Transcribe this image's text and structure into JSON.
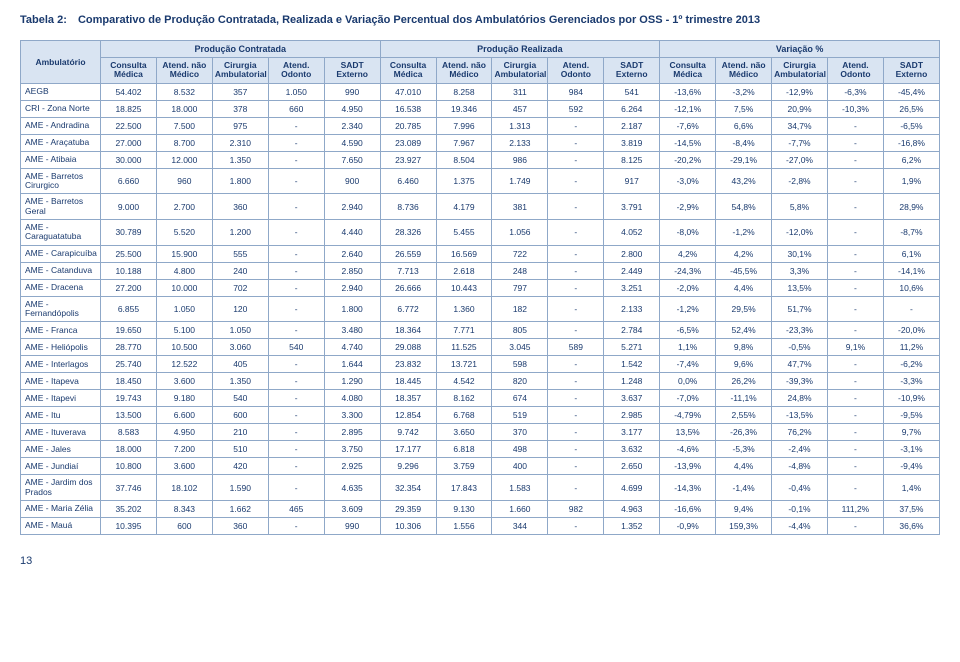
{
  "title_label": "Tabela 2:",
  "title_text": "Comparativo de Produção Contratada, Realizada e Variação Percentual dos Ambulatórios Gerenciados por OSS - 1º trimestre 2013",
  "page_number": "13",
  "headers": {
    "ambulatorio": "Ambulatório",
    "group1": "Produção Contratada",
    "group2": "Produção Realizada",
    "group3": "Variação %",
    "sub": [
      "Consulta Médica",
      "Atend. não Médico",
      "Cirurgia Ambulatorial",
      "Atend. Odonto",
      "SADT Externo",
      "Consulta Médica",
      "Atend. não Médico",
      "Cirurgia Ambulatorial",
      "Atend. Odonto",
      "SADT Externo",
      "Consulta Médica",
      "Atend. não Médico",
      "Cirurgia Ambulatorial",
      "Atend. Odonto",
      "SADT Externo"
    ]
  },
  "rows": [
    {
      "label": "AEGB",
      "cells": [
        "54.402",
        "8.532",
        "357",
        "1.050",
        "990",
        "47.010",
        "8.258",
        "311",
        "984",
        "541",
        "-13,6%",
        "-3,2%",
        "-12,9%",
        "-6,3%",
        "-45,4%"
      ]
    },
    {
      "label": "CRI - Zona Norte",
      "cells": [
        "18.825",
        "18.000",
        "378",
        "660",
        "4.950",
        "16.538",
        "19.346",
        "457",
        "592",
        "6.264",
        "-12,1%",
        "7,5%",
        "20,9%",
        "-10,3%",
        "26,5%"
      ]
    },
    {
      "label": "AME - Andradina",
      "cells": [
        "22.500",
        "7.500",
        "975",
        "-",
        "2.340",
        "20.785",
        "7.996",
        "1.313",
        "-",
        "2.187",
        "-7,6%",
        "6,6%",
        "34,7%",
        "-",
        "-6,5%"
      ]
    },
    {
      "label": "AME - Araçatuba",
      "cells": [
        "27.000",
        "8.700",
        "2.310",
        "-",
        "4.590",
        "23.089",
        "7.967",
        "2.133",
        "-",
        "3.819",
        "-14,5%",
        "-8,4%",
        "-7,7%",
        "-",
        "-16,8%"
      ]
    },
    {
      "label": "AME - Atibaia",
      "cells": [
        "30.000",
        "12.000",
        "1.350",
        "-",
        "7.650",
        "23.927",
        "8.504",
        "986",
        "-",
        "8.125",
        "-20,2%",
        "-29,1%",
        "-27,0%",
        "-",
        "6,2%"
      ]
    },
    {
      "label": "AME - Barretos Cirurgico",
      "cells": [
        "6.660",
        "960",
        "1.800",
        "-",
        "900",
        "6.460",
        "1.375",
        "1.749",
        "-",
        "917",
        "-3,0%",
        "43,2%",
        "-2,8%",
        "-",
        "1,9%"
      ]
    },
    {
      "label": "AME - Barretos Geral",
      "cells": [
        "9.000",
        "2.700",
        "360",
        "-",
        "2.940",
        "8.736",
        "4.179",
        "381",
        "-",
        "3.791",
        "-2,9%",
        "54,8%",
        "5,8%",
        "-",
        "28,9%"
      ]
    },
    {
      "label": "AME - Caraguatatuba",
      "cells": [
        "30.789",
        "5.520",
        "1.200",
        "-",
        "4.440",
        "28.326",
        "5.455",
        "1.056",
        "-",
        "4.052",
        "-8,0%",
        "-1,2%",
        "-12,0%",
        "-",
        "-8,7%"
      ]
    },
    {
      "label": "AME - Carapicuíba",
      "cells": [
        "25.500",
        "15.900",
        "555",
        "-",
        "2.640",
        "26.559",
        "16.569",
        "722",
        "-",
        "2.800",
        "4,2%",
        "4,2%",
        "30,1%",
        "-",
        "6,1%"
      ]
    },
    {
      "label": "AME - Catanduva",
      "cells": [
        "10.188",
        "4.800",
        "240",
        "-",
        "2.850",
        "7.713",
        "2.618",
        "248",
        "-",
        "2.449",
        "-24,3%",
        "-45,5%",
        "3,3%",
        "-",
        "-14,1%"
      ]
    },
    {
      "label": "AME - Dracena",
      "cells": [
        "27.200",
        "10.000",
        "702",
        "-",
        "2.940",
        "26.666",
        "10.443",
        "797",
        "-",
        "3.251",
        "-2,0%",
        "4,4%",
        "13,5%",
        "-",
        "10,6%"
      ]
    },
    {
      "label": "AME - Fernandópolis",
      "cells": [
        "6.855",
        "1.050",
        "120",
        "-",
        "1.800",
        "6.772",
        "1.360",
        "182",
        "-",
        "2.133",
        "-1,2%",
        "29,5%",
        "51,7%",
        "-",
        "-"
      ]
    },
    {
      "label": "AME - Franca",
      "cells": [
        "19.650",
        "5.100",
        "1.050",
        "-",
        "3.480",
        "18.364",
        "7.771",
        "805",
        "-",
        "2.784",
        "-6,5%",
        "52,4%",
        "-23,3%",
        "-",
        "-20,0%"
      ]
    },
    {
      "label": "AME - Heliópolis",
      "cells": [
        "28.770",
        "10.500",
        "3.060",
        "540",
        "4.740",
        "29.088",
        "11.525",
        "3.045",
        "589",
        "5.271",
        "1,1%",
        "9,8%",
        "-0,5%",
        "9,1%",
        "11,2%"
      ]
    },
    {
      "label": "AME - Interlagos",
      "cells": [
        "25.740",
        "12.522",
        "405",
        "-",
        "1.644",
        "23.832",
        "13.721",
        "598",
        "-",
        "1.542",
        "-7,4%",
        "9,6%",
        "47,7%",
        "-",
        "-6,2%"
      ]
    },
    {
      "label": "AME - Itapeva",
      "cells": [
        "18.450",
        "3.600",
        "1.350",
        "-",
        "1.290",
        "18.445",
        "4.542",
        "820",
        "-",
        "1.248",
        "0,0%",
        "26,2%",
        "-39,3%",
        "-",
        "-3,3%"
      ]
    },
    {
      "label": "AME - Itapevi",
      "cells": [
        "19.743",
        "9.180",
        "540",
        "-",
        "4.080",
        "18.357",
        "8.162",
        "674",
        "-",
        "3.637",
        "-7,0%",
        "-11,1%",
        "24,8%",
        "-",
        "-10,9%"
      ]
    },
    {
      "label": "AME - Itu",
      "cells": [
        "13.500",
        "6.600",
        "600",
        "-",
        "3.300",
        "12.854",
        "6.768",
        "519",
        "-",
        "2.985",
        "-4,79%",
        "2,55%",
        "-13,5%",
        "-",
        "-9,5%"
      ]
    },
    {
      "label": "AME - Ituverava",
      "cells": [
        "8.583",
        "4.950",
        "210",
        "-",
        "2.895",
        "9.742",
        "3.650",
        "370",
        "-",
        "3.177",
        "13,5%",
        "-26,3%",
        "76,2%",
        "-",
        "9,7%"
      ]
    },
    {
      "label": "AME - Jales",
      "cells": [
        "18.000",
        "7.200",
        "510",
        "-",
        "3.750",
        "17.177",
        "6.818",
        "498",
        "-",
        "3.632",
        "-4,6%",
        "-5,3%",
        "-2,4%",
        "-",
        "-3,1%"
      ]
    },
    {
      "label": "AME - Jundiaí",
      "cells": [
        "10.800",
        "3.600",
        "420",
        "-",
        "2.925",
        "9.296",
        "3.759",
        "400",
        "-",
        "2.650",
        "-13,9%",
        "4,4%",
        "-4,8%",
        "-",
        "-9,4%"
      ]
    },
    {
      "label": "AME - Jardim dos Prados",
      "cells": [
        "37.746",
        "18.102",
        "1.590",
        "-",
        "4.635",
        "32.354",
        "17.843",
        "1.583",
        "-",
        "4.699",
        "-14,3%",
        "-1,4%",
        "-0,4%",
        "-",
        "1,4%"
      ]
    },
    {
      "label": "AME - Maria Zélia",
      "cells": [
        "35.202",
        "8.343",
        "1.662",
        "465",
        "3.609",
        "29.359",
        "9.130",
        "1.660",
        "982",
        "4.963",
        "-16,6%",
        "9,4%",
        "-0,1%",
        "111,2%",
        "37,5%"
      ]
    },
    {
      "label": "AME - Mauá",
      "cells": [
        "10.395",
        "600",
        "360",
        "-",
        "990",
        "10.306",
        "1.556",
        "344",
        "-",
        "1.352",
        "-0,9%",
        "159,3%",
        "-4,4%",
        "-",
        "36,6%"
      ]
    }
  ]
}
